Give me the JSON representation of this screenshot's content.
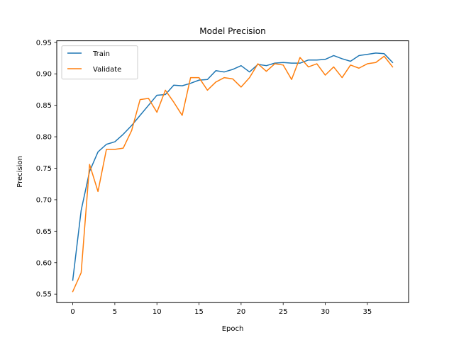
{
  "chart_data": {
    "type": "line",
    "title": "Model Precision",
    "xlabel": "Epoch",
    "ylabel": "Precision",
    "xlim": [
      -1.9,
      39.9
    ],
    "ylim": [
      0.5365,
      0.9525
    ],
    "xticks": [
      0,
      5,
      10,
      15,
      20,
      25,
      30,
      35
    ],
    "xtick_labels": [
      "0",
      "5",
      "10",
      "15",
      "20",
      "25",
      "30",
      "35"
    ],
    "yticks": [
      0.55,
      0.6,
      0.65,
      0.7,
      0.75,
      0.8,
      0.85,
      0.9,
      0.95
    ],
    "ytick_labels": [
      "0.55",
      "0.60",
      "0.65",
      "0.70",
      "0.75",
      "0.80",
      "0.85",
      "0.90",
      "0.95"
    ],
    "grid": false,
    "legend_position": "upper-left",
    "x": [
      0,
      1,
      2,
      3,
      4,
      5,
      6,
      7,
      8,
      9,
      10,
      11,
      12,
      13,
      14,
      15,
      16,
      17,
      18,
      19,
      20,
      21,
      22,
      23,
      24,
      25,
      26,
      27,
      28,
      29,
      30,
      31,
      32,
      33,
      34,
      35,
      36,
      37,
      38
    ],
    "series": [
      {
        "name": "Train",
        "color": "#1f77b4",
        "values": [
          0.572,
          0.683,
          0.745,
          0.776,
          0.788,
          0.792,
          0.804,
          0.818,
          0.834,
          0.85,
          0.866,
          0.867,
          0.882,
          0.881,
          0.885,
          0.89,
          0.891,
          0.905,
          0.903,
          0.907,
          0.913,
          0.903,
          0.915,
          0.913,
          0.917,
          0.918,
          0.917,
          0.917,
          0.922,
          0.922,
          0.923,
          0.929,
          0.924,
          0.92,
          0.929,
          0.931,
          0.933,
          0.932,
          0.918
        ]
      },
      {
        "name": "Validate",
        "color": "#ff7f0e",
        "values": [
          0.554,
          0.584,
          0.756,
          0.713,
          0.78,
          0.78,
          0.782,
          0.81,
          0.859,
          0.861,
          0.839,
          0.874,
          0.855,
          0.834,
          0.894,
          0.894,
          0.874,
          0.887,
          0.894,
          0.892,
          0.879,
          0.894,
          0.916,
          0.904,
          0.916,
          0.914,
          0.891,
          0.926,
          0.911,
          0.916,
          0.898,
          0.911,
          0.894,
          0.914,
          0.909,
          0.916,
          0.918,
          0.928,
          0.911
        ]
      }
    ]
  }
}
